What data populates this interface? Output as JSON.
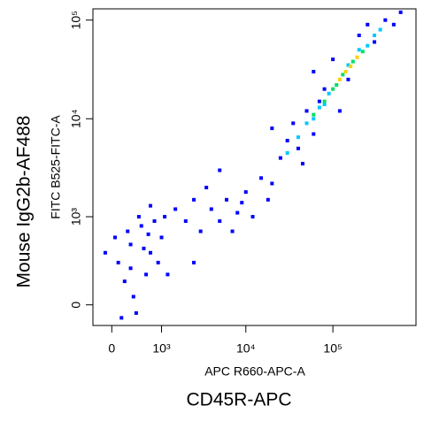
{
  "chart_data": {
    "type": "scatter",
    "scale": "biexponential",
    "xlabel": "APC R660-APC-A",
    "ylabel": "FITC B525-FITC-A",
    "x_marker": "CD45R-APC",
    "y_marker": "Mouse IgG2b-AF488",
    "xlim": [
      -300,
      900000
    ],
    "ylim": [
      -130,
      130000
    ],
    "xticks": [
      0,
      {
        "value": 1000,
        "label": "10³"
      },
      {
        "value": 10000,
        "label": "10⁴"
      },
      {
        "value": 100000,
        "label": "10⁵"
      }
    ],
    "yticks": [
      0,
      {
        "value": 1000,
        "label": "10³"
      },
      {
        "value": 10000,
        "label": "10⁴"
      },
      {
        "value": 100000,
        "label": "10⁵"
      }
    ],
    "series": [
      {
        "color": "#0000ff",
        "x": [
          100,
          300,
          500,
          700,
          200,
          400,
          800,
          1000,
          1500,
          600,
          -100,
          250,
          900,
          450,
          1200,
          350,
          150,
          700,
          2000,
          2500,
          50,
          550,
          1100,
          300,
          650,
          3000,
          4000,
          5000,
          6000,
          8000,
          3500,
          7000,
          10000,
          12000,
          15000,
          9000,
          20000,
          25000,
          18000,
          30000,
          40000,
          35000,
          50000,
          60000,
          45000,
          70000,
          80000,
          100000,
          150000,
          200000,
          300000,
          400000,
          500000,
          600000,
          250000,
          20000,
          60000,
          120000,
          5000,
          2500
        ],
        "values": [
          300,
          500,
          800,
          400,
          150,
          -50,
          900,
          600,
          1200,
          200,
          400,
          700,
          300,
          1000,
          200,
          50,
          -80,
          1300,
          900,
          1500,
          600,
          450,
          1000,
          250,
          650,
          700,
          1200,
          900,
          1500,
          1100,
          2000,
          700,
          1800,
          1000,
          2500,
          1400,
          2200,
          4000,
          1500,
          6000,
          5000,
          9000,
          12000,
          7000,
          3500,
          15000,
          20000,
          40000,
          25000,
          70000,
          60000,
          100000,
          90000,
          120000,
          90000,
          8000,
          30000,
          12000,
          3000,
          300
        ]
      },
      {
        "color": "#00c8ff",
        "x": [
          30000,
          40000,
          50000,
          60000,
          70000,
          80000,
          90000,
          150000,
          200000,
          250000,
          300000,
          350000
        ],
        "values": [
          4500,
          6500,
          9000,
          10000,
          13000,
          14000,
          18000,
          35000,
          50000,
          55000,
          70000,
          80000
        ]
      },
      {
        "color": "#00e060",
        "x": [
          60000,
          80000,
          100000,
          110000,
          130000,
          170000,
          220000
        ],
        "values": [
          11000,
          15000,
          20000,
          22000,
          28000,
          38000,
          48000
        ]
      },
      {
        "color": "#ffd000",
        "x": [
          120000,
          140000,
          160000,
          190000
        ],
        "values": [
          25000,
          30000,
          34000,
          42000
        ]
      }
    ]
  }
}
